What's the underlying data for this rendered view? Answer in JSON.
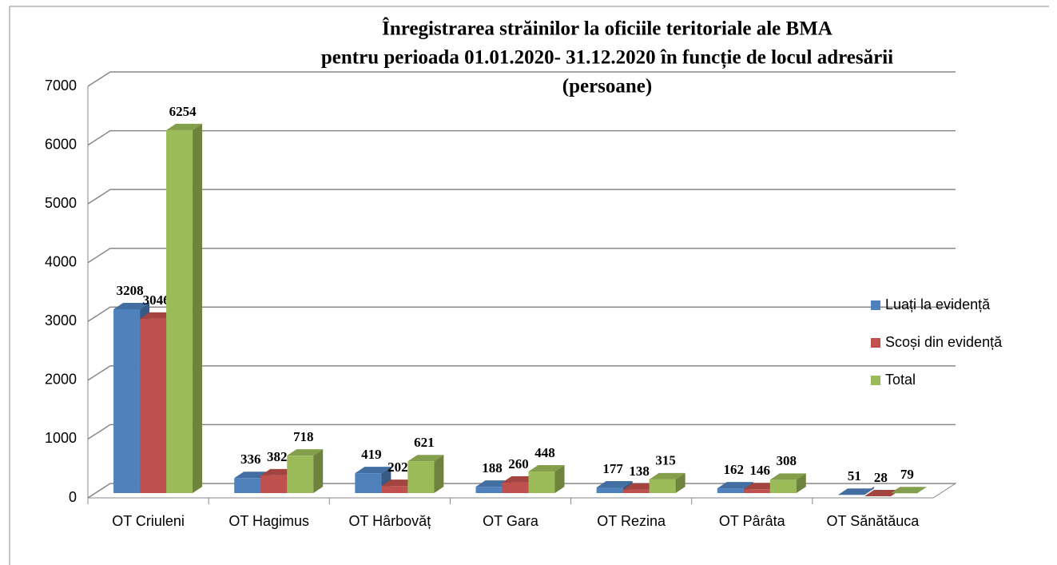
{
  "chart_data": {
    "type": "bar3d",
    "title": [
      "Înregistrarea străinilor la oficiile teritoriale ale BMA",
      "pentru perioada 01.01.2020- 31.12.2020 în funcție de locul adresării",
      "(persoane)"
    ],
    "categories": [
      "OT Criuleni",
      "OT Hagimus",
      "OT Hârbovăț",
      "OT Gara",
      "OT Rezina",
      "OT Pârâta",
      "OT Sănătăuca"
    ],
    "series": [
      {
        "name": "Luați la evidență",
        "color": "#4f81bd",
        "values": [
          3208,
          336,
          419,
          188,
          177,
          162,
          51
        ]
      },
      {
        "name": "Scoși din evidență",
        "color": "#c0504d",
        "values": [
          3046,
          382,
          202,
          260,
          138,
          146,
          28
        ]
      },
      {
        "name": "Total",
        "color": "#9bbb59",
        "values": [
          6254,
          718,
          621,
          448,
          315,
          308,
          79
        ]
      }
    ],
    "ylim": [
      0,
      7000
    ],
    "yticks": [
      0,
      1000,
      2000,
      3000,
      4000,
      5000,
      6000,
      7000
    ],
    "grid": true,
    "legend": "right"
  }
}
